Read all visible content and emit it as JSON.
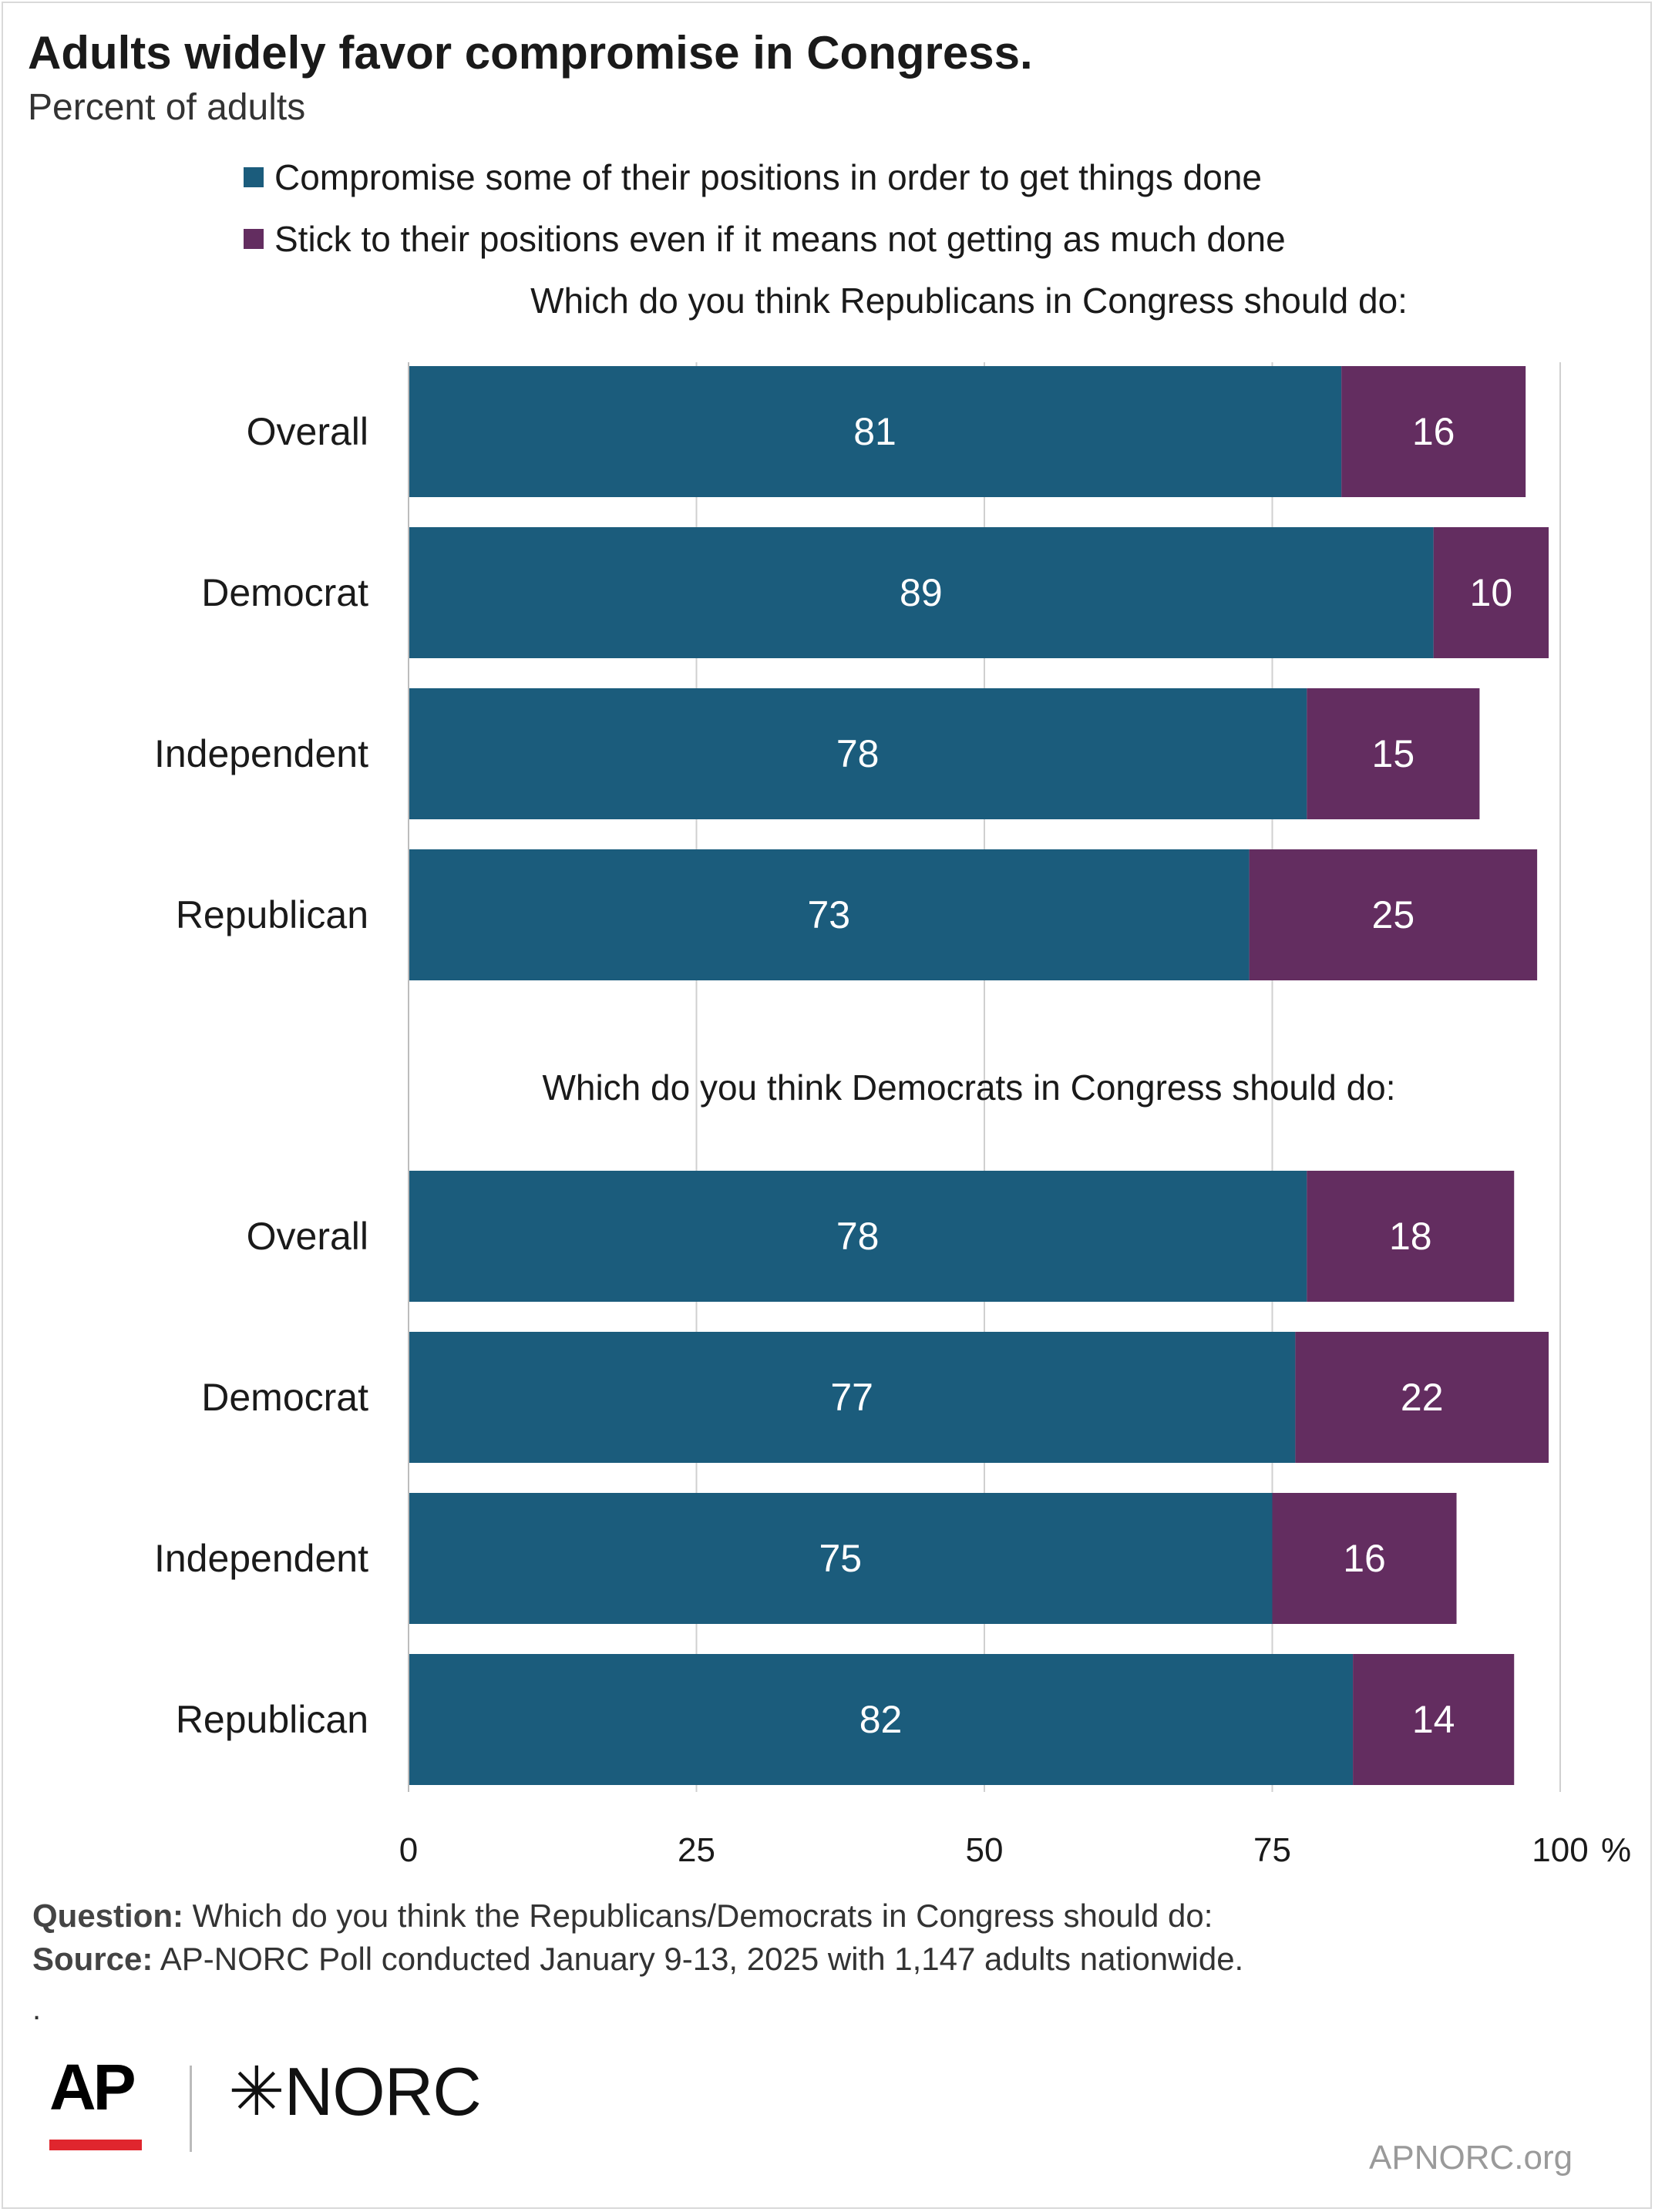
{
  "title": "Adults widely favor compromise in Congress.",
  "subtitle": "Percent of adults",
  "colors": {
    "compromise": "#1b5c7c",
    "stick": "#632d60",
    "grid": "#d0d0d0"
  },
  "legend": [
    "Compromise some of their positions in order to get things done",
    "Stick to their positions even if it means not getting as much done"
  ],
  "chart_data": {
    "type": "bar",
    "orientation": "horizontal",
    "stacked": true,
    "x_ticks": [
      "0",
      "25",
      "50",
      "75",
      "100"
    ],
    "x_unit": "%",
    "xlim": [
      0,
      100
    ],
    "grid": true,
    "legend_position": "top",
    "panels": [
      {
        "heading": "Which do you think Republicans in Congress should do:",
        "categories": [
          "Overall",
          "Democrat",
          "Independent",
          "Republican"
        ],
        "series": [
          {
            "name": "Compromise some of their positions in order to get things done",
            "values": [
              81,
              89,
              78,
              73
            ]
          },
          {
            "name": "Stick to their positions even if it means not getting as much done",
            "values": [
              16,
              10,
              15,
              25
            ]
          }
        ]
      },
      {
        "heading": "Which do you think Democrats in Congress should do:",
        "categories": [
          "Overall",
          "Democrat",
          "Independent",
          "Republican"
        ],
        "series": [
          {
            "name": "Compromise some of their positions in order to get things done",
            "values": [
              78,
              77,
              75,
              82
            ]
          },
          {
            "name": "Stick to their positions even if it means not getting as much done",
            "values": [
              18,
              22,
              16,
              14
            ]
          }
        ]
      }
    ]
  },
  "footer": {
    "question_label": "Question:",
    "question_text": "Which do you think the Republicans/Democrats in Congress should do:",
    "source_label": "Source:",
    "source_text": "AP-NORC Poll conducted January 9-13, 2025 with 1,147 adults nationwide.",
    "trailing_mark": "."
  },
  "logos": {
    "ap": "AP",
    "norc": "✳NORC"
  },
  "site": "APNORC.org"
}
